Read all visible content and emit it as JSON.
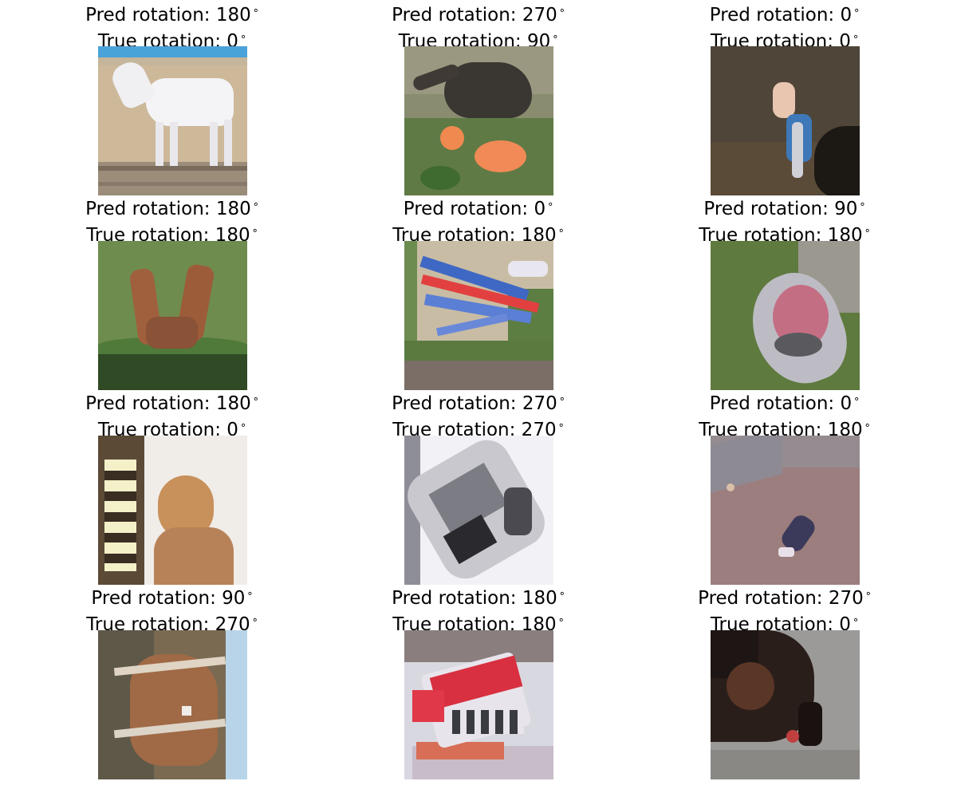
{
  "panels": [
    {
      "pred": "Pred rotation: 180",
      "true": "True rotation: 0",
      "subject": "white-horse-image"
    },
    {
      "pred": "Pred rotation: 270",
      "true": "True rotation: 90",
      "subject": "dark-animal-flowers-image"
    },
    {
      "pred": "Pred rotation: 0",
      "true": "True rotation: 0",
      "subject": "bird-dark-background-image"
    },
    {
      "pred": "Pred rotation: 180",
      "true": "True rotation: 180",
      "subject": "deer-grass-image"
    },
    {
      "pred": "Pred rotation: 0",
      "true": "True rotation: 180",
      "subject": "airplane-image"
    },
    {
      "pred": "Pred rotation: 90",
      "true": "True rotation: 180",
      "subject": "bird-grass-image"
    },
    {
      "pred": "Pred rotation: 180",
      "true": "True rotation: 0",
      "subject": "dog-window-image"
    },
    {
      "pred": "Pred rotation: 270",
      "true": "True rotation: 270",
      "subject": "white-car-image"
    },
    {
      "pred": "Pred rotation: 0",
      "true": "True rotation: 180",
      "subject": "small-bird-ground-image"
    },
    {
      "pred": "Pred rotation: 90",
      "true": "True rotation: 270",
      "subject": "brown-horse-image"
    },
    {
      "pred": "Pred rotation: 180",
      "true": "True rotation: 180",
      "subject": "red-truck-image"
    },
    {
      "pred": "Pred rotation: 270",
      "true": "True rotation: 0",
      "subject": "dark-animal-road-image"
    }
  ]
}
